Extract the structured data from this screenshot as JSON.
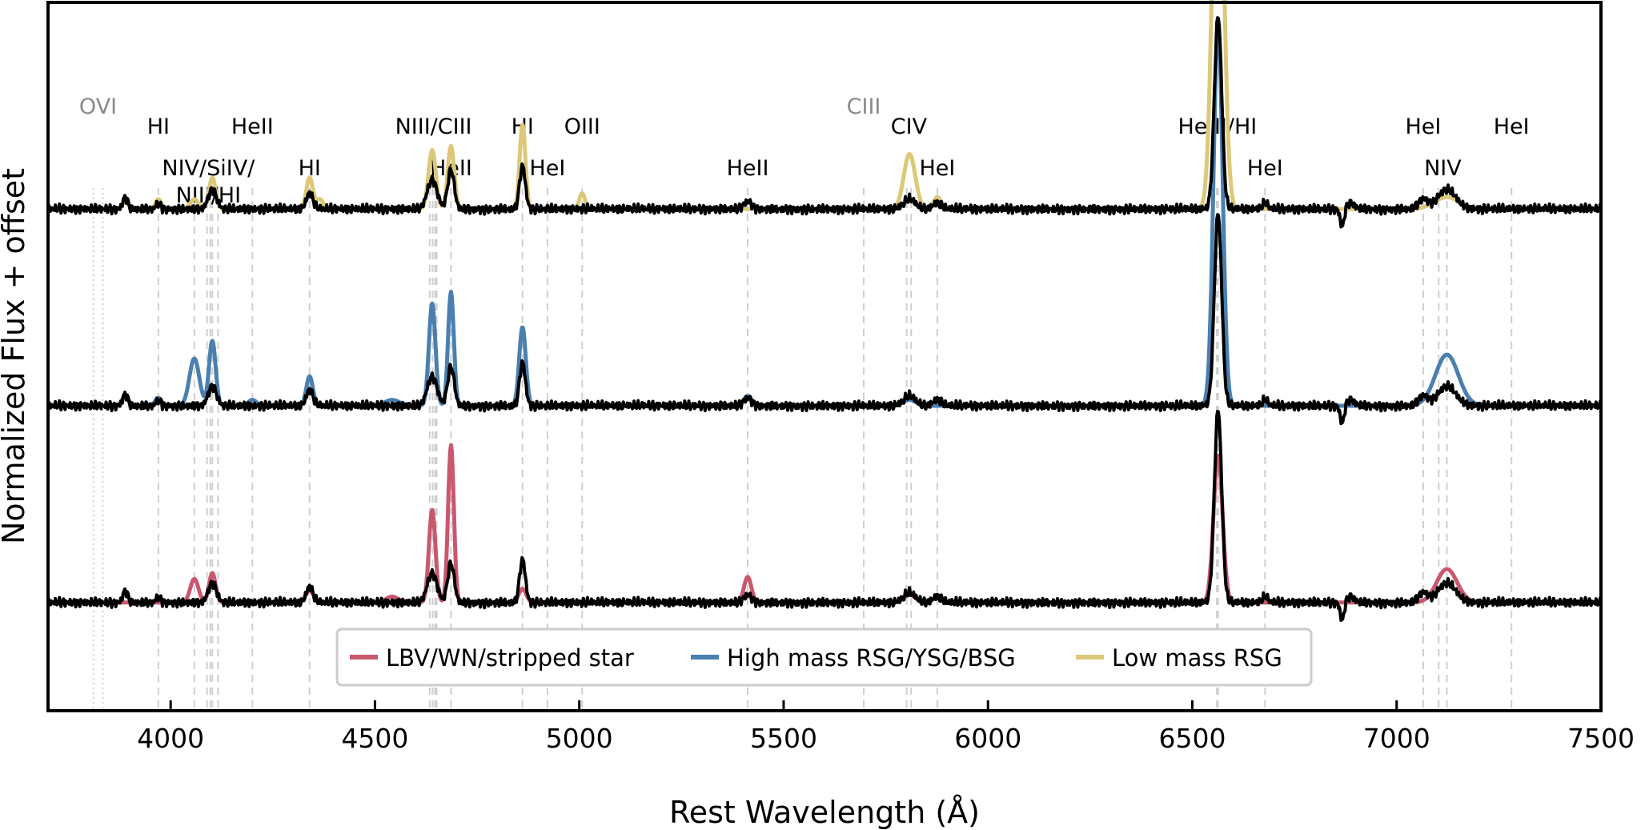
{
  "chart_data": {
    "type": "line",
    "title": "",
    "xlabel": "Rest Wavelength (Å)",
    "ylabel": "Normalized Flux + offset",
    "xlim": [
      3700,
      7500
    ],
    "ylim": [
      -1.55,
      2.05
    ],
    "xticks": [
      "4000",
      "4500",
      "5000",
      "5500",
      "6000",
      "6500",
      "7000",
      "7500"
    ],
    "grid": false,
    "legend_placement": "bottom-center",
    "line_identifications": [
      {
        "label": "OVI",
        "wavelengths": [
          3811,
          3834
        ],
        "row": 0,
        "muted": true,
        "dotted": true
      },
      {
        "label": "HI",
        "wavelengths": [
          3970
        ],
        "row": 1,
        "muted": false
      },
      {
        "label": "HeII",
        "wavelengths": [
          4200
        ],
        "row": 1,
        "muted": false
      },
      {
        "label": "NIV/SiIV/",
        "wavelengths": [
          4058,
          4089,
          4097,
          4102,
          4116
        ],
        "row": 2,
        "muted": false
      },
      {
        "label": "NIII/HI",
        "wavelengths": [],
        "row": 3,
        "muted": false
      },
      {
        "label": "HI",
        "wavelengths": [
          4340
        ],
        "row": 2,
        "muted": false
      },
      {
        "label": "NIII/CIII",
        "wavelengths": [
          4634,
          4641,
          4647,
          4651
        ],
        "row": 1,
        "muted": false
      },
      {
        "label": "HeII",
        "wavelengths": [
          4686
        ],
        "row": 2,
        "muted": false
      },
      {
        "label": "HI",
        "wavelengths": [
          4861
        ],
        "row": 1,
        "muted": false
      },
      {
        "label": "HeI",
        "wavelengths": [
          4922
        ],
        "row": 2,
        "muted": false
      },
      {
        "label": "OIII",
        "wavelengths": [
          5007
        ],
        "row": 1,
        "muted": false
      },
      {
        "label": "HeII",
        "wavelengths": [
          5412
        ],
        "row": 2,
        "muted": false
      },
      {
        "label": "CIII",
        "wavelengths": [
          5696
        ],
        "row": 0,
        "muted": true
      },
      {
        "label": "CIV",
        "wavelengths": [
          5801,
          5812
        ],
        "row": 1,
        "muted": false
      },
      {
        "label": "HeI",
        "wavelengths": [
          5876
        ],
        "row": 2,
        "muted": false
      },
      {
        "label": "He II/HI",
        "wavelengths": [
          6560,
          6563
        ],
        "row": 1,
        "muted": false
      },
      {
        "label": "HeI",
        "wavelengths": [
          6678
        ],
        "row": 2,
        "muted": false
      },
      {
        "label": "HeI",
        "wavelengths": [
          7065
        ],
        "row": 1,
        "muted": false
      },
      {
        "label": "NIV",
        "wavelengths": [
          7103,
          7123
        ],
        "row": 2,
        "muted": false
      },
      {
        "label": "HeI",
        "wavelengths": [
          7281
        ],
        "row": 1,
        "muted": false
      }
    ],
    "series": [
      {
        "name": "LBV/WN/stripped star",
        "color": "#c9576e",
        "offset": -1.0,
        "lines": [
          [
            4058,
            0.12,
            10
          ],
          [
            4102,
            0.15,
            8
          ],
          [
            4340,
            0.06,
            10
          ],
          [
            4542,
            0.03,
            15
          ],
          [
            4640,
            0.47,
            8
          ],
          [
            4686,
            0.8,
            7
          ],
          [
            4861,
            0.07,
            9
          ],
          [
            5412,
            0.13,
            9
          ],
          [
            5808,
            0.04,
            14
          ],
          [
            5876,
            0.03,
            10
          ],
          [
            6563,
            0.75,
            11
          ],
          [
            7123,
            0.17,
            25
          ]
        ]
      },
      {
        "name": "High mass RSG/YSG/BSG",
        "color": "#4a7fb0",
        "offset": 0.0,
        "lines": [
          [
            3889,
            0.05,
            8
          ],
          [
            3970,
            0.04,
            8
          ],
          [
            4058,
            0.24,
            12
          ],
          [
            4102,
            0.33,
            8
          ],
          [
            4200,
            0.03,
            10
          ],
          [
            4340,
            0.15,
            8
          ],
          [
            4542,
            0.03,
            18
          ],
          [
            4640,
            0.52,
            8
          ],
          [
            4686,
            0.58,
            7
          ],
          [
            4861,
            0.4,
            8
          ],
          [
            5412,
            0.05,
            10
          ],
          [
            5808,
            0.03,
            15
          ],
          [
            6563,
            1.95,
            11
          ],
          [
            7123,
            0.26,
            28
          ]
        ]
      },
      {
        "name": "Low mass RSG",
        "color": "#dcc878",
        "offset": 1.0,
        "lines": [
          [
            3889,
            0.04,
            7
          ],
          [
            3970,
            0.05,
            7
          ],
          [
            4058,
            0.05,
            10
          ],
          [
            4102,
            0.16,
            8
          ],
          [
            4340,
            0.16,
            8
          ],
          [
            4365,
            0.05,
            8
          ],
          [
            4640,
            0.3,
            9
          ],
          [
            4686,
            0.32,
            8
          ],
          [
            4861,
            0.43,
            7
          ],
          [
            5007,
            0.08,
            7
          ],
          [
            5808,
            0.28,
            14
          ],
          [
            5876,
            0.06,
            9
          ],
          [
            6563,
            2.3,
            13
          ],
          [
            7123,
            0.06,
            30
          ]
        ]
      }
    ],
    "observed": {
      "name": "",
      "color": "#000000",
      "lines": [
        [
          3889,
          0.06,
          6
        ],
        [
          3970,
          0.03,
          6
        ],
        [
          4102,
          0.1,
          10
        ],
        [
          4340,
          0.08,
          8
        ],
        [
          4640,
          0.15,
          12
        ],
        [
          4686,
          0.2,
          8
        ],
        [
          4861,
          0.22,
          7
        ],
        [
          5412,
          0.04,
          10
        ],
        [
          5808,
          0.05,
          14
        ],
        [
          5876,
          0.03,
          10
        ],
        [
          6563,
          0.98,
          9
        ],
        [
          6678,
          0.03,
          7
        ],
        [
          7065,
          0.05,
          12
        ],
        [
          7123,
          0.1,
          22
        ]
      ],
      "telluric": [
        [
          6867,
          -0.1,
          5
        ],
        [
          6885,
          0.03,
          12
        ]
      ]
    }
  }
}
